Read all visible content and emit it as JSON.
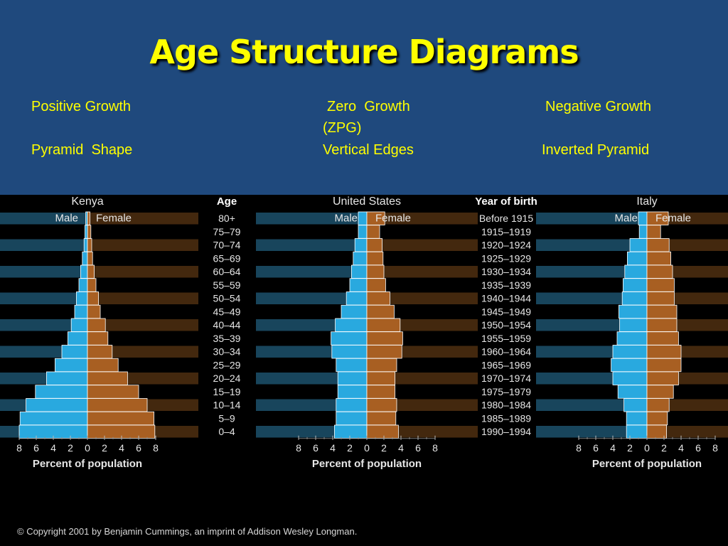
{
  "slide": {
    "title": "Age Structure Diagrams"
  },
  "captions": {
    "positive": {
      "line1": "Positive Growth",
      "line2": "Pyramid  Shape"
    },
    "zero": {
      "line1": "Zero  Growth",
      "line1b": "(ZPG)",
      "line2": "Vertical Edges"
    },
    "negative": {
      "line1": "Negative Growth",
      "line2": "Inverted Pyramid"
    }
  },
  "figure": {
    "age_header": "Age",
    "year_header": "Year of birth",
    "male_label": "Male",
    "female_label": "Female",
    "copyright": "© Copyright 2001 by Benjamin Cummings, an imprint of Addison Wesley Longman.",
    "colors": {
      "male": "#29a9df",
      "female": "#a85f22",
      "male_band": "#1b4d66",
      "female_band": "#4a2c10"
    }
  },
  "chart_data": [
    {
      "type": "bar",
      "title": "Kenya",
      "xlabel": "Percent of population",
      "xticks": [
        "8",
        "6",
        "4",
        "2",
        "0",
        "2",
        "4",
        "6",
        "8"
      ],
      "xlim": [
        -8,
        8
      ],
      "categories": [
        "80+",
        "75–79",
        "70–74",
        "65–69",
        "60–64",
        "55–59",
        "50–54",
        "45–49",
        "40–44",
        "35–39",
        "30–34",
        "25–29",
        "20–24",
        "15–19",
        "10–14",
        "5–9",
        "0–4"
      ],
      "birth_years": [
        "Before 1915",
        "1915–1919",
        "1920–1924",
        "1925–1929",
        "1930–1934",
        "1935–1939",
        "1940–1944",
        "1945–1949",
        "1950–1954",
        "1955–1959",
        "1960–1964",
        "1965–1969",
        "1970–1974",
        "1975–1979",
        "1980–1984",
        "1985–1989",
        "1990–1994"
      ],
      "series": [
        {
          "name": "Male",
          "values": [
            0.2,
            0.3,
            0.4,
            0.6,
            0.8,
            1.0,
            1.3,
            1.5,
            1.9,
            2.3,
            3.0,
            3.8,
            4.8,
            6.1,
            7.2,
            7.9,
            8.0
          ]
        },
        {
          "name": "Female",
          "values": [
            0.3,
            0.4,
            0.5,
            0.6,
            0.8,
            1.0,
            1.3,
            1.5,
            2.1,
            2.4,
            2.9,
            3.6,
            4.7,
            6.0,
            7.0,
            7.8,
            7.9
          ]
        }
      ]
    },
    {
      "type": "bar",
      "title": "United States",
      "xlabel": "Percent of population",
      "xticks": [
        "8",
        "6",
        "4",
        "2",
        "0",
        "2",
        "4",
        "6",
        "8"
      ],
      "xlim": [
        -8,
        8
      ],
      "series": [
        {
          "name": "Male",
          "values": [
            1.0,
            1.0,
            1.4,
            1.6,
            1.8,
            2.0,
            2.4,
            3.0,
            3.7,
            4.2,
            4.1,
            3.6,
            3.4,
            3.4,
            3.6,
            3.6,
            3.8
          ]
        },
        {
          "name": "Female",
          "values": [
            2.1,
            1.5,
            1.8,
            1.9,
            2.0,
            2.2,
            2.7,
            3.2,
            3.9,
            4.2,
            4.1,
            3.5,
            3.3,
            3.3,
            3.5,
            3.4,
            3.7
          ]
        }
      ]
    },
    {
      "type": "bar",
      "title": "Italy",
      "xlabel": "Percent of population",
      "xticks": [
        "8",
        "6",
        "4",
        "2",
        "0",
        "2",
        "4",
        "6",
        "8"
      ],
      "xlim": [
        -8,
        8
      ],
      "series": [
        {
          "name": "Male",
          "values": [
            1.0,
            0.9,
            2.0,
            2.3,
            2.6,
            2.8,
            2.9,
            3.3,
            3.2,
            3.5,
            4.0,
            4.2,
            4.0,
            3.4,
            2.7,
            2.4,
            2.4
          ]
        },
        {
          "name": "Female",
          "values": [
            2.5,
            1.6,
            2.6,
            2.8,
            3.0,
            3.2,
            3.2,
            3.5,
            3.5,
            3.7,
            4.0,
            4.0,
            3.7,
            3.1,
            2.6,
            2.4,
            2.3
          ]
        }
      ]
    }
  ]
}
